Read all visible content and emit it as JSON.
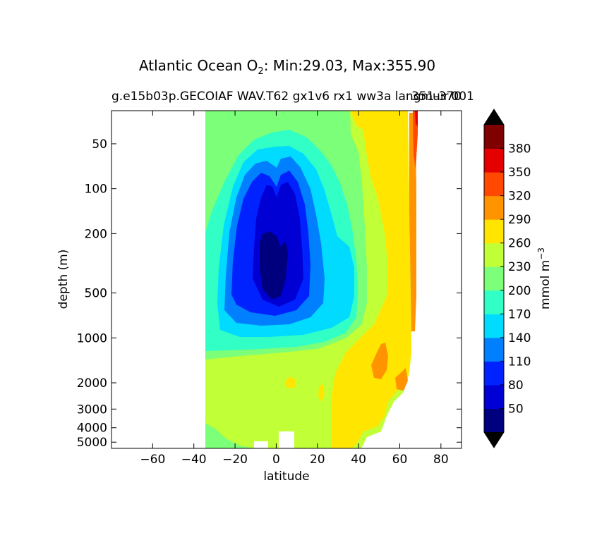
{
  "chart_data": {
    "type": "contourf",
    "title": {
      "prefix": "Atlantic Ocean O",
      "subscript": "2",
      "suffix": ": Min:29.03, Max:355.90"
    },
    "subtitle_left": "g.e15b03p.GECOIAF WAV.T62 gx1v6 rx1 ww3a langmuir.001",
    "subtitle_right": "351-370",
    "xlabel": "latitude",
    "ylabel": "depth (m)",
    "xlim": [
      -80,
      90
    ],
    "xticks": [
      -60,
      -40,
      -20,
      0,
      20,
      40,
      60,
      80
    ],
    "xtick_labels": [
      "−60",
      "−40",
      "−20",
      "0",
      "20",
      "40",
      "60",
      "80"
    ],
    "yscale": "log",
    "ylim": [
      5500,
      30
    ],
    "yticks": [
      50,
      100,
      200,
      500,
      1000,
      2000,
      3000,
      4000,
      5000
    ],
    "ytick_labels": [
      "50",
      "100",
      "200",
      "500",
      "1000",
      "2000",
      "3000",
      "4000",
      "5000"
    ],
    "colorbar": {
      "label_base": "mmol m",
      "label_exp": "−3",
      "levels": [
        20,
        50,
        80,
        110,
        140,
        170,
        200,
        230,
        260,
        290,
        320,
        350,
        380,
        410
      ],
      "tick_labels": [
        "50",
        "80",
        "110",
        "140",
        "170",
        "200",
        "230",
        "260",
        "290",
        "320",
        "350",
        "380"
      ],
      "colors": [
        "#00007f",
        "#0000d4",
        "#0022ff",
        "#0080ff",
        "#00dbff",
        "#31ffc5",
        "#7cff79",
        "#c1ff36",
        "#ffe500",
        "#ff9400",
        "#ff4800",
        "#e50000",
        "#7f0000"
      ],
      "under_color": "#000000",
      "over_color": "#000000"
    },
    "field_regions": [
      {
        "level": 230,
        "extent": "ocean section background, surface to bottom, 35°S–70°N"
      },
      {
        "level": 200,
        "extent": "upper ocean, 35°S–35°N, surface to ~1500 m"
      },
      {
        "level": 170,
        "extent": "tropical thermocline, 30°S–30°N, 50–1200 m"
      },
      {
        "level": 140,
        "extent": "tropical oxygen-minimum envelope, 25°S–25°N, 70–900 m"
      },
      {
        "level": 110,
        "extent": "20°S–20°N, 100–800 m"
      },
      {
        "level": 80,
        "extent": "15°S–15°N, 100–650 m"
      },
      {
        "level": 50,
        "extent": "core minimum near 5°S–5°N, 250–600 m"
      },
      {
        "level": 260,
        "extent": "North Atlantic 40°N–65°N and deep water below ~2000 m"
      },
      {
        "level": 290,
        "extent": "patches near 60°N, 2000–3000 m, and 68°N surface"
      },
      {
        "level": 320,
        "extent": "near 68°N, surface to ~500 m"
      }
    ]
  }
}
